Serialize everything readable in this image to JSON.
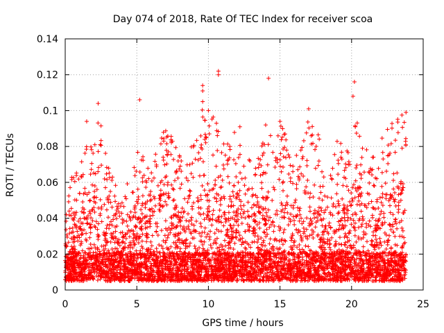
{
  "chart_data": {
    "type": "scatter",
    "title": "Day 074 of 2018, Rate Of TEC Index for receiver scoa",
    "xlabel": "GPS time / hours",
    "ylabel": "ROTI / TECUs",
    "xlim": [
      0,
      25
    ],
    "ylim": [
      0,
      0.14
    ],
    "x_ticks": [
      0,
      5,
      10,
      15,
      20,
      25
    ],
    "x_tick_labels": [
      "0",
      "5",
      "10",
      "15",
      "20",
      "25"
    ],
    "y_ticks": [
      0,
      0.02,
      0.04,
      0.06,
      0.08,
      0.1,
      0.12,
      0.14
    ],
    "y_tick_labels": [
      "0",
      "0.02",
      "0.04",
      "0.06",
      "0.08",
      "0.1",
      "0.12",
      "0.14"
    ],
    "grid": true,
    "marker": "plus",
    "color": "#ff0000",
    "notable_points": [
      {
        "x": 10.7,
        "y": 0.122
      },
      {
        "x": 10.7,
        "y": 0.12
      },
      {
        "x": 9.6,
        "y": 0.114
      },
      {
        "x": 9.6,
        "y": 0.111
      },
      {
        "x": 20.2,
        "y": 0.116
      },
      {
        "x": 20.1,
        "y": 0.108
      },
      {
        "x": 14.2,
        "y": 0.118
      },
      {
        "x": 5.2,
        "y": 0.106
      },
      {
        "x": 2.3,
        "y": 0.104
      },
      {
        "x": 17.0,
        "y": 0.101
      },
      {
        "x": 9.6,
        "y": 0.105
      },
      {
        "x": 10.0,
        "y": 0.1
      },
      {
        "x": 23.8,
        "y": 0.099
      },
      {
        "x": 1.5,
        "y": 0.094
      },
      {
        "x": 12.2,
        "y": 0.091
      },
      {
        "x": 14.0,
        "y": 0.092
      },
      {
        "x": 15.0,
        "y": 0.094
      }
    ],
    "series_profile": {
      "x": [
        0,
        0.5,
        1,
        1.5,
        2,
        2.5,
        3,
        3.5,
        4,
        4.5,
        5,
        5.5,
        6,
        6.5,
        7,
        7.5,
        8,
        8.5,
        9,
        9.5,
        10,
        10.5,
        11,
        11.5,
        12,
        12.5,
        13,
        13.5,
        14,
        14.5,
        15,
        15.5,
        16,
        16.5,
        17,
        17.5,
        18,
        18.5,
        19,
        19.5,
        20,
        20.5,
        21,
        21.5,
        22,
        22.5,
        23,
        23.5,
        23.8
      ],
      "typical_max": [
        0.04,
        0.06,
        0.07,
        0.075,
        0.08,
        0.095,
        0.065,
        0.055,
        0.045,
        0.06,
        0.075,
        0.07,
        0.06,
        0.08,
        0.085,
        0.08,
        0.07,
        0.065,
        0.085,
        0.1,
        0.09,
        0.1,
        0.085,
        0.08,
        0.085,
        0.075,
        0.07,
        0.075,
        0.085,
        0.08,
        0.09,
        0.08,
        0.07,
        0.08,
        0.09,
        0.085,
        0.075,
        0.07,
        0.08,
        0.075,
        0.085,
        0.09,
        0.075,
        0.07,
        0.08,
        0.085,
        0.09,
        0.095,
        0.09
      ],
      "typical_min": 0.005
    }
  }
}
